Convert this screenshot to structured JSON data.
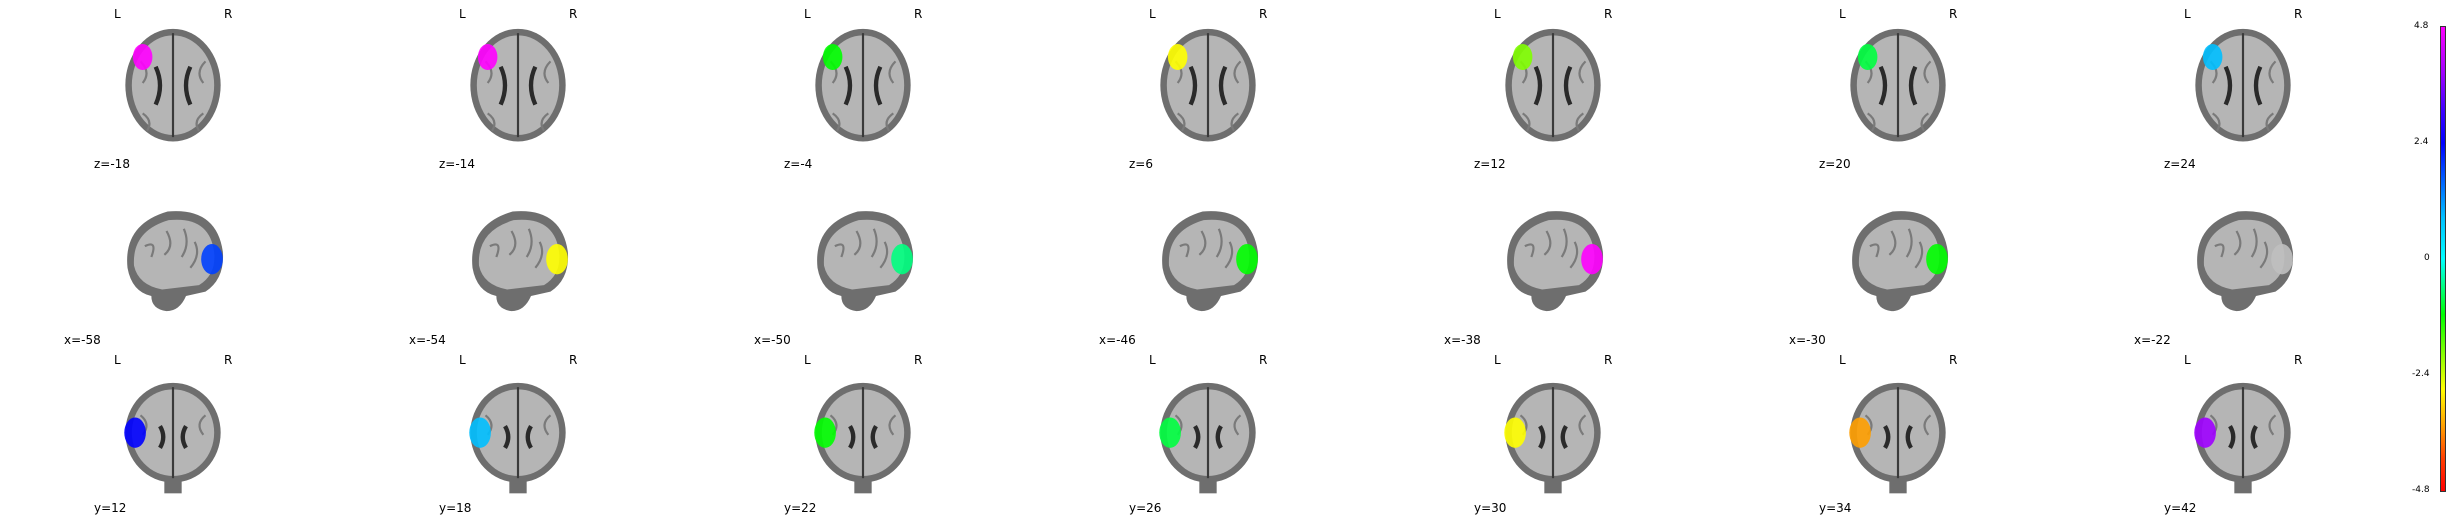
{
  "rows": [
    {
      "view": "axial",
      "top": 0,
      "show_lr": true,
      "panels": [
        {
          "coord": "z=-18",
          "blob": "#ff00ff"
        },
        {
          "coord": "z=-14",
          "blob": "#ff00ff"
        },
        {
          "coord": "z=-4",
          "blob": "#00ff00"
        },
        {
          "coord": "z=6",
          "blob": "#ffff00"
        },
        {
          "coord": "z=12",
          "blob": "#7fff00"
        },
        {
          "coord": "z=20",
          "blob": "#00ff40"
        },
        {
          "coord": "z=24",
          "blob": "#00bfff"
        }
      ]
    },
    {
      "view": "sagittal",
      "top": 172,
      "show_lr": false,
      "panels": [
        {
          "coord": "x=-58",
          "blob": "#0040ff"
        },
        {
          "coord": "x=-54",
          "blob": "#ffff00"
        },
        {
          "coord": "x=-50",
          "blob": "#00ff7f"
        },
        {
          "coord": "x=-46",
          "blob": "#00ff00"
        },
        {
          "coord": "x=-38",
          "blob": "#ff00ff"
        },
        {
          "coord": "x=-30",
          "blob": "#00ff00"
        },
        {
          "coord": "x=-22",
          "blob": "#bfbfbf"
        }
      ]
    },
    {
      "view": "coronal",
      "top": 344,
      "show_lr": true,
      "panels": [
        {
          "coord": "y=12",
          "blob": "#0000ff"
        },
        {
          "coord": "y=18",
          "blob": "#00bfff"
        },
        {
          "coord": "y=22",
          "blob": "#00ff00"
        },
        {
          "coord": "y=26",
          "blob": "#00ff40"
        },
        {
          "coord": "y=30",
          "blob": "#ffff00"
        },
        {
          "coord": "y=34",
          "blob": "#ff9f00"
        },
        {
          "coord": "y=42",
          "blob": "#9f00ff"
        }
      ]
    }
  ],
  "labels": {
    "left": "L",
    "right": "R"
  },
  "colorbar": {
    "ticks": [
      "4.8",
      "2.4",
      "0",
      "-2.4",
      "-4.8"
    ]
  }
}
